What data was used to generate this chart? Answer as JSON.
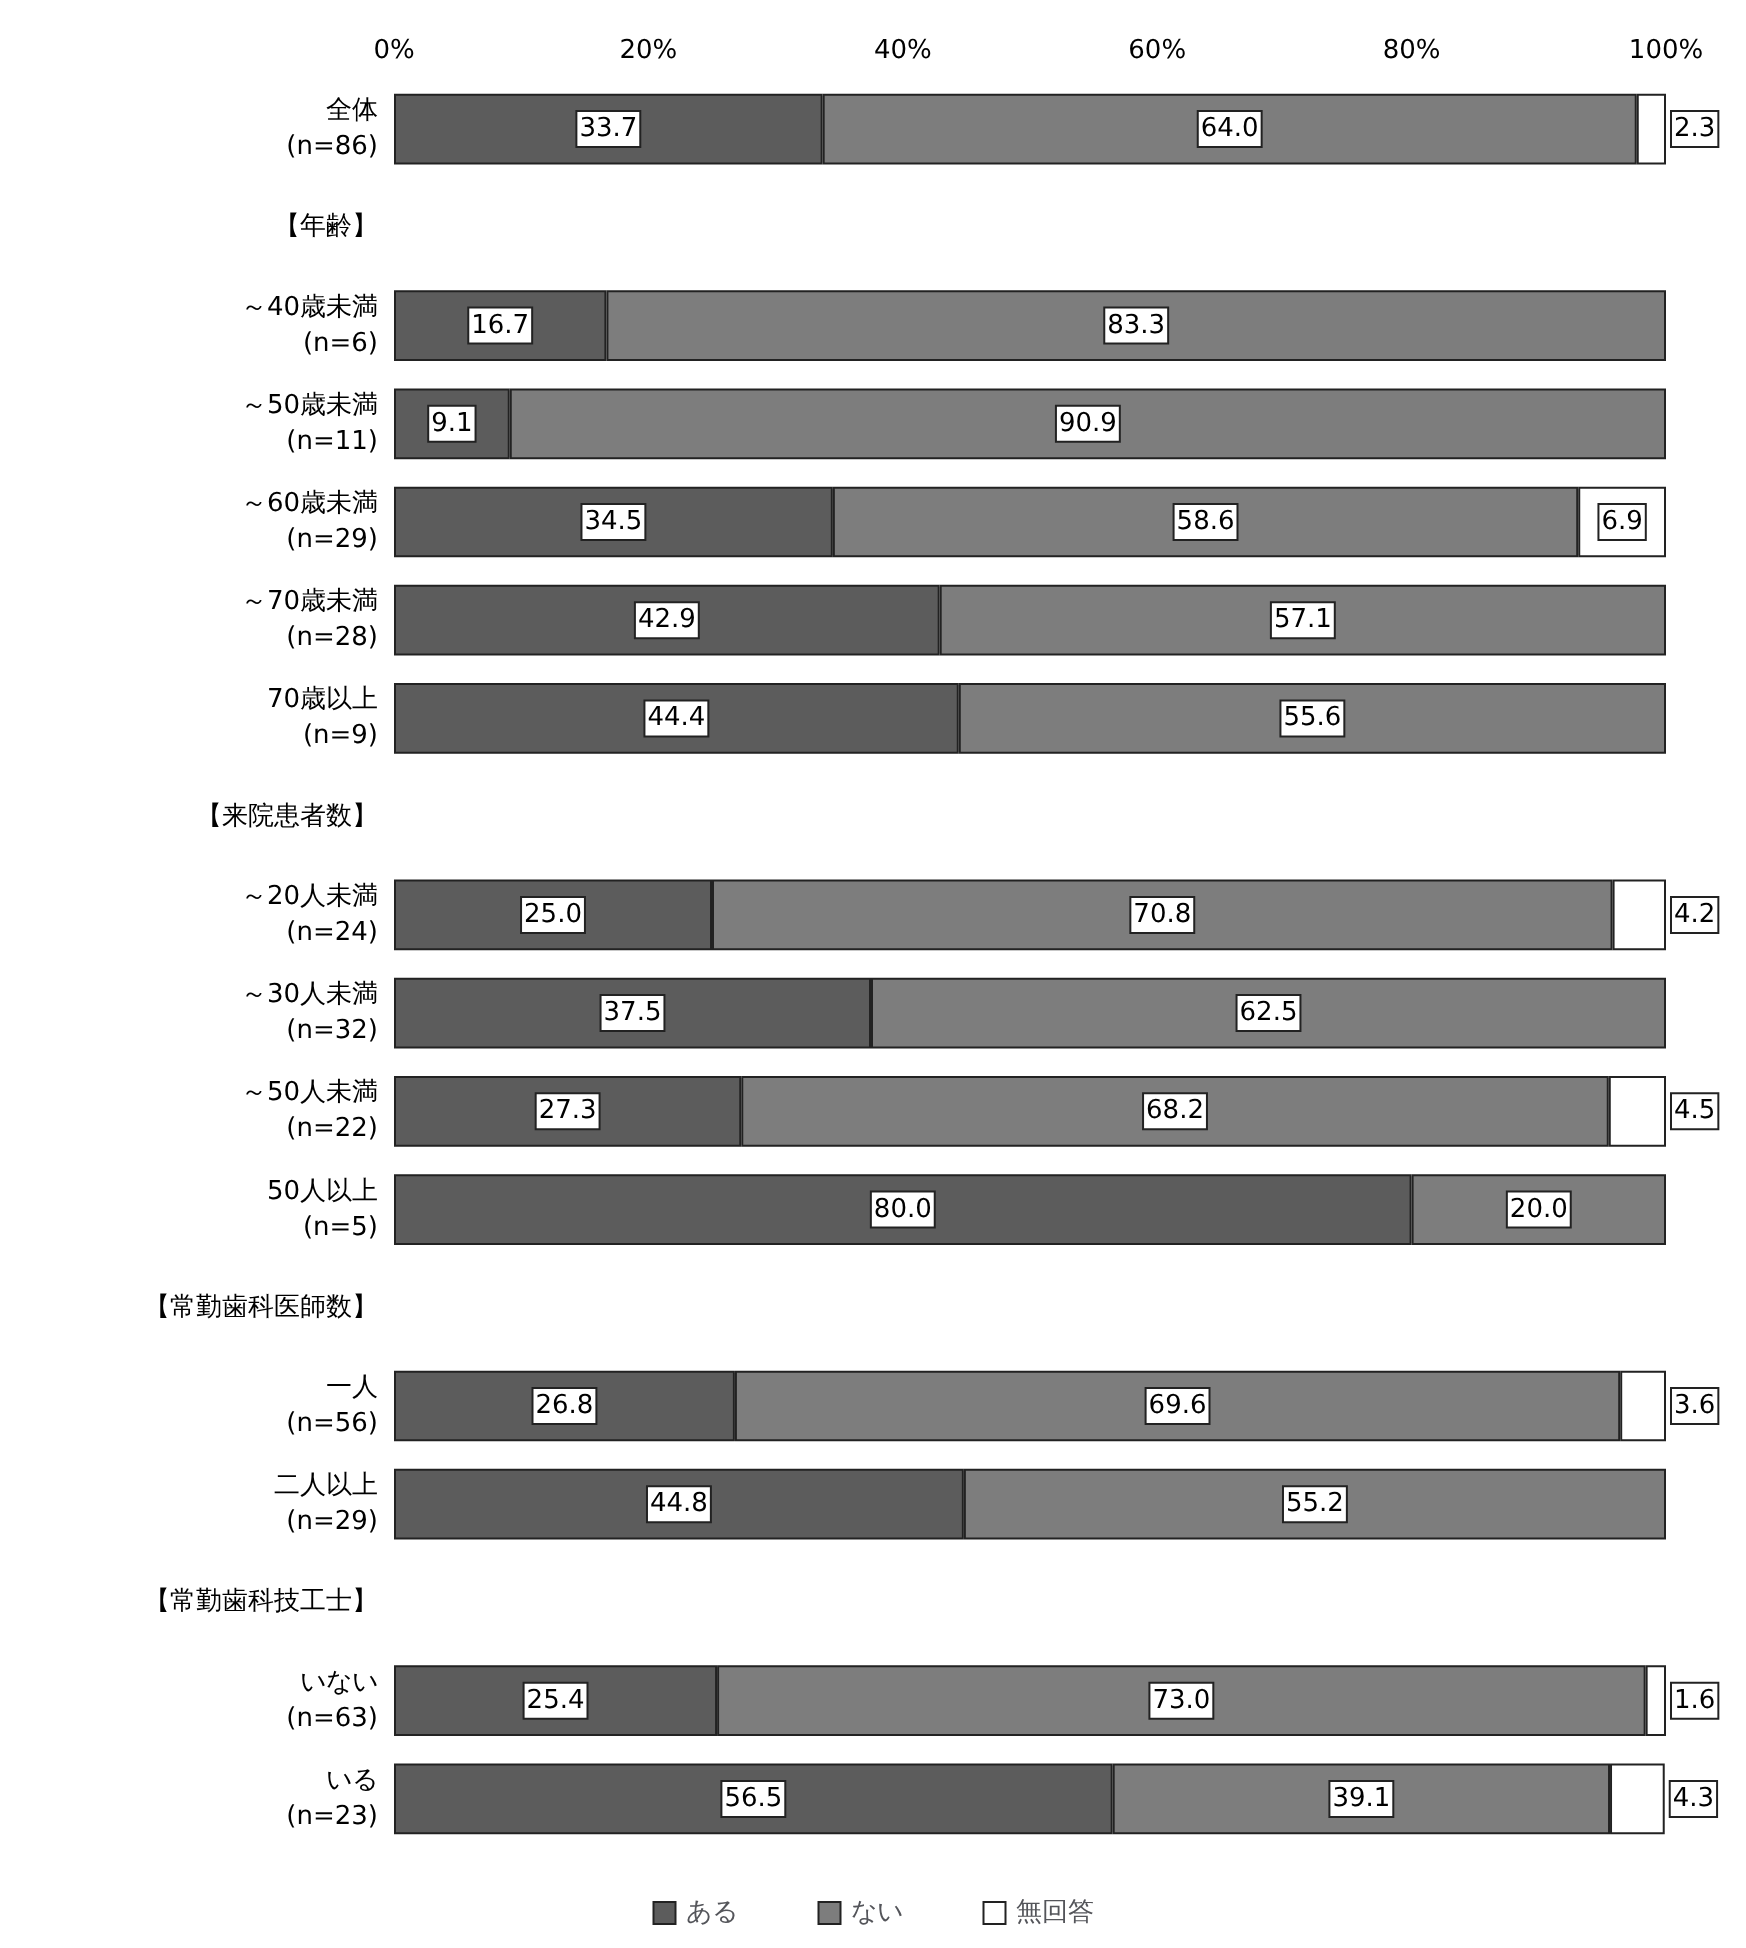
{
  "chart_data": {
    "type": "bar",
    "orientation": "horizontal",
    "stacked": true,
    "categories": [
      "全体\n(n=86)",
      "【年齢】",
      "～40歳未満\n(n=6)",
      "～50歳未満\n(n=11)",
      "～60歳未満\n(n=29)",
      "～70歳未満\n(n=28)",
      "70歳以上\n(n=9)",
      "【来院患者数】",
      "～20人未満\n(n=24)",
      "～30人未満\n(n=32)",
      "～50人未満\n(n=22)",
      "50人以上\n(n=5)",
      "【常勤歯科医師数】",
      "一人\n(n=56)",
      "二人以上\n(n=29)",
      "【常勤歯科技工士】",
      "いない\n(n=63)",
      "いる\n(n=23)"
    ],
    "series": [
      {
        "name": "ある",
        "color": "#5c5c5c",
        "values": [
          33.7,
          null,
          16.7,
          9.1,
          34.5,
          42.9,
          44.4,
          null,
          25.0,
          37.5,
          27.3,
          80.0,
          null,
          26.8,
          44.8,
          null,
          25.4,
          56.5
        ],
        "value_labels": [
          "33.7",
          null,
          "16.7",
          "9.1",
          "34.5",
          "42.9",
          "44.4",
          null,
          "25.0",
          "37.5",
          "27.3",
          "80.0",
          null,
          "26.8",
          "44.8",
          null,
          "25.4",
          "56.5"
        ]
      },
      {
        "name": "ない",
        "color": "#7d7d7d",
        "values": [
          64.0,
          null,
          83.3,
          90.9,
          58.6,
          57.1,
          55.6,
          null,
          70.8,
          62.5,
          68.2,
          20.0,
          null,
          69.6,
          55.2,
          null,
          73.0,
          39.1
        ],
        "value_labels": [
          "64.0",
          null,
          "83.3",
          "90.9",
          "58.6",
          "57.1",
          "55.6",
          null,
          "70.8",
          "62.5",
          "68.2",
          "20.0",
          null,
          "69.6",
          "55.2",
          null,
          "73.0",
          "39.1"
        ]
      },
      {
        "name": "無回答",
        "color": "#ffffff",
        "values": [
          2.3,
          null,
          null,
          null,
          6.9,
          null,
          null,
          null,
          4.2,
          null,
          4.5,
          null,
          null,
          3.6,
          null,
          null,
          1.6,
          4.3
        ],
        "value_labels": [
          "2.3",
          null,
          null,
          null,
          "6.9",
          null,
          null,
          null,
          "4.2",
          null,
          "4.5",
          null,
          null,
          "3.6",
          null,
          null,
          "1.6",
          "4.3"
        ]
      }
    ],
    "xlim": [
      0,
      100
    ],
    "xticks": [
      {
        "value": 0,
        "label": "0%"
      },
      {
        "value": 20,
        "label": "20%"
      },
      {
        "value": 40,
        "label": "40%"
      },
      {
        "value": 60,
        "label": "60%"
      },
      {
        "value": 80,
        "label": "80%"
      },
      {
        "value": 100,
        "label": "100%"
      }
    ],
    "legend": "bottom"
  }
}
